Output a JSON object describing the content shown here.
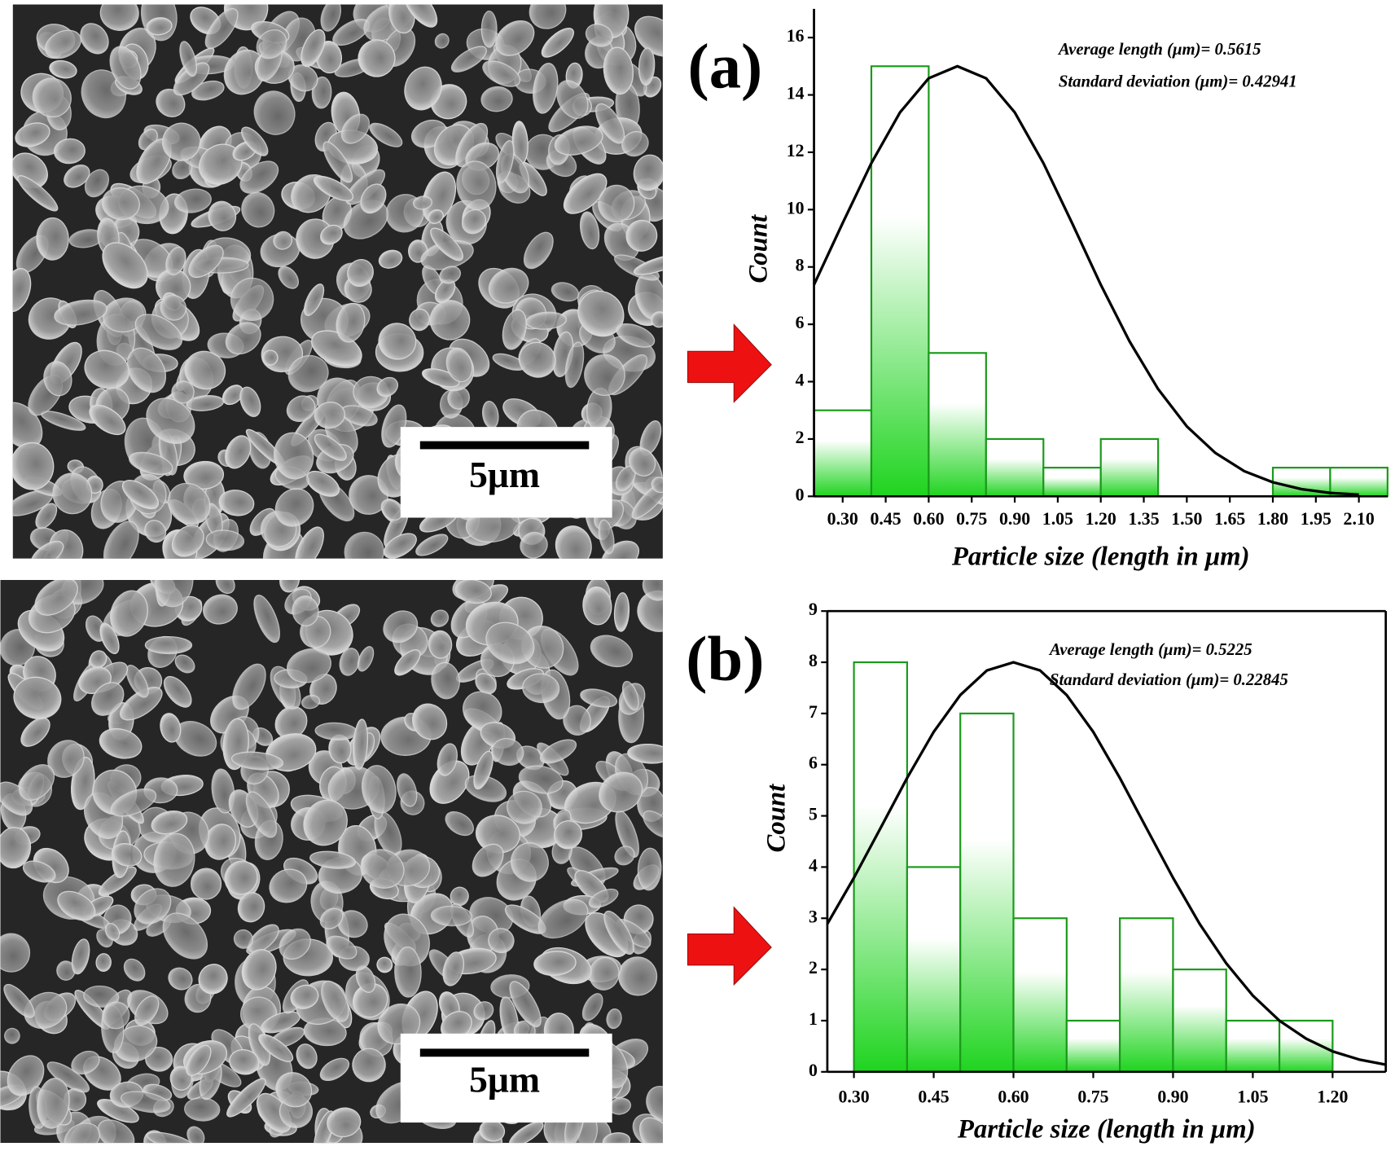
{
  "micrographs": [
    {
      "scale_bar": "5μm"
    },
    {
      "scale_bar": "5μm"
    }
  ],
  "chart_data": [
    {
      "type": "histogram",
      "panel_label": "(a)",
      "annotations": [
        "Average length (μm)= 0.5615",
        "Standard deviation (μm)= 0.42941"
      ],
      "x_label": "Particle size (length in μm)",
      "y_label": "Count",
      "bins": [
        0.2,
        0.4,
        0.6,
        0.8,
        1.0,
        1.2,
        1.4,
        1.6,
        1.8,
        2.0,
        2.2
      ],
      "counts": [
        3,
        15,
        5,
        2,
        1,
        2,
        0,
        0,
        1,
        1
      ],
      "color": "#1fd41f",
      "edge_color": "#1a9a1a",
      "curve_color": "#000000",
      "fit_curve": {
        "x": [
          0.2,
          0.3,
          0.4,
          0.5,
          0.6,
          0.7,
          0.8,
          0.9,
          1.0,
          1.1,
          1.2,
          1.3,
          1.4,
          1.5,
          1.6,
          1.7,
          1.8,
          1.9,
          2.0,
          2.1
        ],
        "y": [
          7.38,
          9.53,
          11.62,
          13.39,
          14.58,
          15,
          14.58,
          13.39,
          11.62,
          9.53,
          7.38,
          5.41,
          3.74,
          2.44,
          1.51,
          0.88,
          0.49,
          0.25,
          0.12,
          0.06
        ]
      },
      "xlim": [
        0.2,
        2.2
      ],
      "ylim": [
        0,
        17
      ],
      "xticks": [
        {
          "value": 0.3,
          "label": "0.30"
        },
        {
          "value": 0.45,
          "label": "0.45"
        },
        {
          "value": 0.6,
          "label": "0.60"
        },
        {
          "value": 0.75,
          "label": "0.75"
        },
        {
          "value": 0.9,
          "label": "0.90"
        },
        {
          "value": 1.05,
          "label": "1.05"
        },
        {
          "value": 1.2,
          "label": "1.20"
        },
        {
          "value": 1.35,
          "label": "1.35"
        },
        {
          "value": 1.5,
          "label": "1.50"
        },
        {
          "value": 1.65,
          "label": "1.65"
        },
        {
          "value": 1.8,
          "label": "1.80"
        },
        {
          "value": 1.95,
          "label": "1.95"
        },
        {
          "value": 2.1,
          "label": "2.10"
        }
      ],
      "yticks": [
        0,
        2,
        4,
        6,
        8,
        10,
        12,
        14,
        16
      ],
      "box": false
    },
    {
      "type": "histogram",
      "panel_label": "(b)",
      "annotations": [
        "Average length (μm)= 0.5225",
        "Standard deviation (μm)= 0.22845"
      ],
      "x_label": "Particle size (length in μm)",
      "y_label": "Count",
      "bins": [
        0.3,
        0.4,
        0.5,
        0.6,
        0.7,
        0.8,
        0.9,
        1.0,
        1.1,
        1.2
      ],
      "counts": [
        8,
        4,
        7,
        3,
        1,
        3,
        2,
        1,
        1
      ],
      "color": "#1fd41f",
      "edge_color": "#1a9a1a",
      "curve_color": "#000000",
      "fit_curve": {
        "x": [
          0.25,
          0.3,
          0.35,
          0.4,
          0.45,
          0.5,
          0.55,
          0.6,
          0.65,
          0.7,
          0.75,
          0.8,
          0.85,
          0.9,
          0.95,
          1.0,
          1.05,
          1.1,
          1.15,
          1.2,
          1.25,
          1.3
        ],
        "y": [
          2.89,
          3.79,
          4.76,
          5.74,
          6.64,
          7.36,
          7.84,
          8,
          7.84,
          7.36,
          6.64,
          5.74,
          4.76,
          3.79,
          2.89,
          2.12,
          1.49,
          1.0,
          0.65,
          0.4,
          0.24,
          0.14
        ]
      },
      "xlim": [
        0.25,
        1.3
      ],
      "ylim": [
        0,
        9
      ],
      "xticks": [
        {
          "value": 0.3,
          "label": "0.30"
        },
        {
          "value": 0.45,
          "label": "0.45"
        },
        {
          "value": 0.6,
          "label": "0.60"
        },
        {
          "value": 0.75,
          "label": "0.75"
        },
        {
          "value": 0.9,
          "label": "0.90"
        },
        {
          "value": 1.05,
          "label": "1.05"
        },
        {
          "value": 1.2,
          "label": "1.20"
        }
      ],
      "yticks": [
        0,
        1,
        2,
        3,
        4,
        5,
        6,
        7,
        8,
        9
      ],
      "box": true
    }
  ]
}
